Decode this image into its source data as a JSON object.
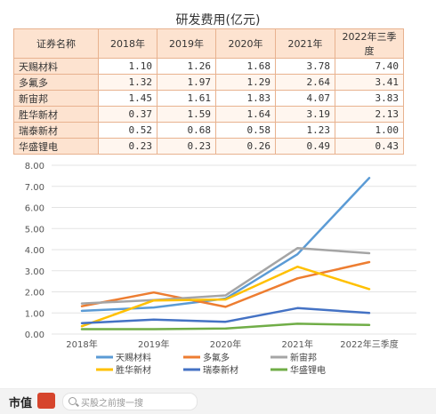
{
  "table": {
    "title": "研发费用(亿元)",
    "header": [
      "证券名称",
      "2018年",
      "2019年",
      "2020年",
      "2021年",
      "2022年三季度"
    ],
    "rows": [
      {
        "name": "天赐材料",
        "values": [
          "1.10",
          "1.26",
          "1.68",
          "3.78",
          "7.40"
        ]
      },
      {
        "name": "多氟多",
        "values": [
          "1.32",
          "1.97",
          "1.29",
          "2.64",
          "3.41"
        ]
      },
      {
        "name": "新宙邦",
        "values": [
          "1.45",
          "1.61",
          "1.83",
          "4.07",
          "3.83"
        ]
      },
      {
        "name": "胜华新材",
        "values": [
          "0.37",
          "1.59",
          "1.64",
          "3.19",
          "2.13"
        ]
      },
      {
        "name": "瑞泰新材",
        "values": [
          "0.52",
          "0.68",
          "0.58",
          "1.23",
          "1.00"
        ]
      },
      {
        "name": "华盛锂电",
        "values": [
          "0.23",
          "0.23",
          "0.26",
          "0.49",
          "0.43"
        ]
      }
    ]
  },
  "chart_data": {
    "type": "line",
    "categories": [
      "2018年",
      "2019年",
      "2020年",
      "2021年",
      "2022年三季度"
    ],
    "ylim": [
      0,
      8
    ],
    "yticks": [
      "0.00",
      "1.00",
      "2.00",
      "3.00",
      "4.00",
      "5.00",
      "6.00",
      "7.00",
      "8.00"
    ],
    "grid": true,
    "legend_position": "bottom",
    "series": [
      {
        "name": "天赐材料",
        "color": "#5b9bd5",
        "values": [
          1.1,
          1.26,
          1.68,
          3.78,
          7.4
        ]
      },
      {
        "name": "多氟多",
        "color": "#ed7d31",
        "values": [
          1.32,
          1.97,
          1.29,
          2.64,
          3.41
        ]
      },
      {
        "name": "新宙邦",
        "color": "#a5a5a5",
        "values": [
          1.45,
          1.61,
          1.83,
          4.07,
          3.83
        ]
      },
      {
        "name": "胜华新材",
        "color": "#ffc000",
        "values": [
          0.37,
          1.59,
          1.64,
          3.19,
          2.13
        ]
      },
      {
        "name": "瑞泰新材",
        "color": "#4472c4",
        "values": [
          0.52,
          0.68,
          0.58,
          1.23,
          1.0
        ]
      },
      {
        "name": "华盛锂电",
        "color": "#70ad47",
        "values": [
          0.23,
          0.23,
          0.26,
          0.49,
          0.43
        ]
      }
    ]
  },
  "footer": {
    "logo": "市值",
    "search_placeholder": "买股之前搜一搜"
  }
}
